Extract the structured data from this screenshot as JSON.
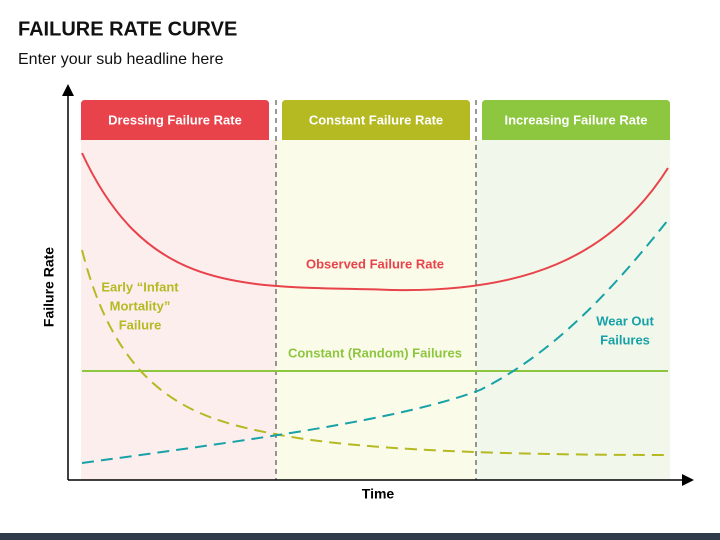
{
  "header": {
    "title": "FAILURE RATE CURVE",
    "subtitle": "Enter your sub headline here"
  },
  "axes": {
    "y_label": "Failure Rate",
    "x_label": "Time"
  },
  "phases": [
    "Dressing Failure Rate",
    "Constant Failure Rate",
    "Increasing Failure Rate"
  ],
  "curve_labels": {
    "observed": "Observed Failure Rate",
    "infant": [
      "Early “Infant",
      "Mortality”",
      "Failure"
    ],
    "constant": "Constant (Random) Failures",
    "wear_out": [
      "Wear Out",
      "Failures"
    ]
  }
}
